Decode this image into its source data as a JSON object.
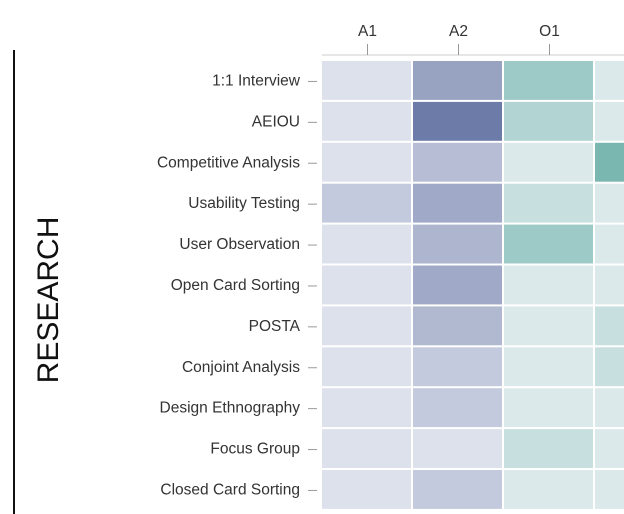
{
  "chart_data": {
    "type": "heatmap",
    "group_label": "RESEARCH",
    "columns": [
      "A1",
      "A2",
      "O1",
      null
    ],
    "column_colors": [
      "#56679b",
      "#56679b",
      "#5ea8a1",
      "#5ea8a1"
    ],
    "rows": [
      "1:1 Interview",
      "AEIOU",
      "Competitive Analysis",
      "Usability Testing",
      "User Observation",
      "Open Card Sorting",
      "POSTA",
      "Conjoint Analysis",
      "Design Ethnography",
      "Focus Group",
      "Closed Card Sorting"
    ],
    "values": [
      [
        0.08,
        0.55,
        0.55,
        0.1
      ],
      [
        0.08,
        0.85,
        0.4,
        0.1
      ],
      [
        0.08,
        0.35,
        0.1,
        0.8
      ],
      [
        0.25,
        0.5,
        0.25,
        0.1
      ],
      [
        0.08,
        0.4,
        0.55,
        0.1
      ],
      [
        0.08,
        0.5,
        0.1,
        0.1
      ],
      [
        0.08,
        0.38,
        0.1,
        0.25
      ],
      [
        0.08,
        0.25,
        0.1,
        0.25
      ],
      [
        0.08,
        0.25,
        0.1,
        0.1
      ],
      [
        0.08,
        0.08,
        0.25,
        0.1
      ],
      [
        0.08,
        0.25,
        0.1,
        0.1
      ]
    ]
  }
}
